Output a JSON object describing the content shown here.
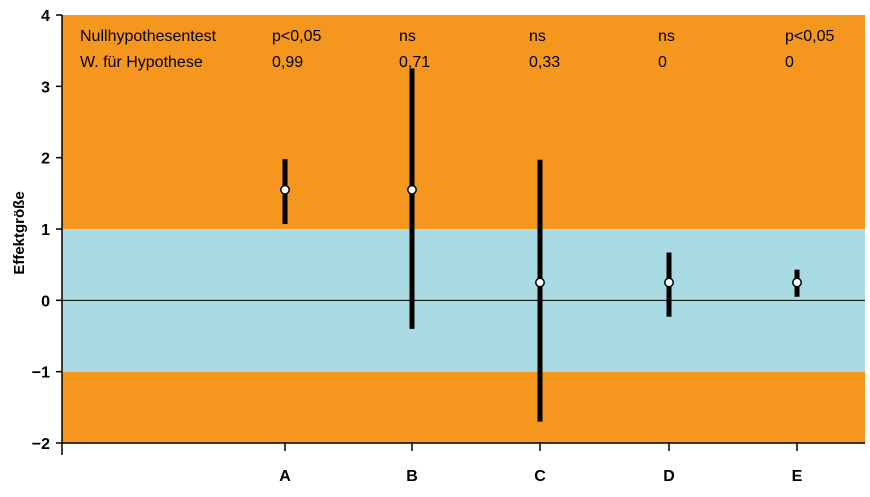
{
  "chart_data": {
    "type": "scatter",
    "ylabel": "Effektgröße",
    "xlabel": "",
    "ylim": [
      -2,
      4
    ],
    "yticks": [
      {
        "value": -2,
        "label": "−2"
      },
      {
        "value": -1,
        "label": "−1"
      },
      {
        "value": 0,
        "label": "0"
      },
      {
        "value": 1,
        "label": "1"
      },
      {
        "value": 2,
        "label": "2"
      },
      {
        "value": 3,
        "label": "3"
      },
      {
        "value": 4,
        "label": "4"
      }
    ],
    "categories": [
      "A",
      "B",
      "C",
      "D",
      "E"
    ],
    "points": [
      {
        "category": "A",
        "y": 1.55,
        "low": 1.07,
        "high": 1.98
      },
      {
        "category": "B",
        "y": 1.55,
        "low": -0.4,
        "high": 3.25
      },
      {
        "category": "C",
        "y": 0.25,
        "low": -1.7,
        "high": 1.97
      },
      {
        "category": "D",
        "y": 0.25,
        "low": -0.23,
        "high": 0.67
      },
      {
        "category": "E",
        "y": 0.25,
        "low": 0.05,
        "high": 0.43
      }
    ],
    "bands": [
      {
        "from": -2,
        "to": -1,
        "color": "#f5961e"
      },
      {
        "from": -1,
        "to": 1,
        "color": "#a8dbe2"
      },
      {
        "from": 1,
        "to": 4,
        "color": "#f5961e"
      }
    ],
    "reference_line": 0,
    "table": {
      "rows": [
        {
          "label": "Nullhypothesentest",
          "values": [
            "p<0,05",
            "ns",
            "ns",
            "ns",
            "p<0,05"
          ]
        },
        {
          "label": "W. für Hypothese",
          "values": [
            "0,99",
            "0,71",
            "0,33",
            "0",
            "0"
          ]
        }
      ]
    },
    "grid": false,
    "legend": "none"
  },
  "colors": {
    "outer_band": "#f5961e",
    "inner_band": "#a8dbe2",
    "bars": "#000000",
    "point_fill": "#ffffff"
  }
}
